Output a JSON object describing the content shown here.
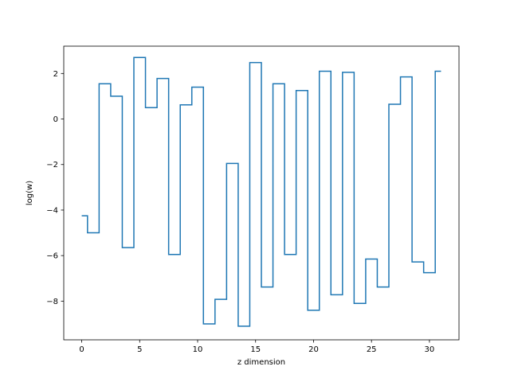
{
  "chart_data": {
    "type": "line",
    "drawstyle": "steps-mid",
    "title": "",
    "xlabel": "z dimension",
    "ylabel": "log(w)",
    "xlim": [
      -1.55,
      32.55
    ],
    "ylim": [
      -9.7,
      3.2
    ],
    "xticks": [
      0,
      5,
      10,
      15,
      20,
      25,
      30
    ],
    "yticks": [
      2,
      0,
      -2,
      -4,
      -6,
      -8
    ],
    "grid": false,
    "legend": "none",
    "line_color": "#1f77b4",
    "series": [
      {
        "x": [
          0,
          1,
          2,
          3,
          4,
          5,
          6,
          7,
          8,
          9,
          10,
          11,
          12,
          13,
          14,
          15,
          16,
          17,
          18,
          19,
          20,
          21,
          22,
          23,
          24,
          25,
          26,
          27,
          28,
          29,
          30,
          31
        ],
        "values": [
          -4.25,
          -5.0,
          1.55,
          1.0,
          -5.65,
          2.7,
          0.5,
          1.78,
          -5.95,
          0.62,
          1.4,
          -9.0,
          -7.92,
          -1.95,
          -9.1,
          2.48,
          -7.38,
          1.55,
          -5.95,
          1.25,
          -8.4,
          2.1,
          -7.72,
          2.05,
          -8.1,
          -6.15,
          -7.38,
          0.65,
          1.85,
          -6.28,
          -6.75,
          2.1
        ]
      }
    ]
  }
}
